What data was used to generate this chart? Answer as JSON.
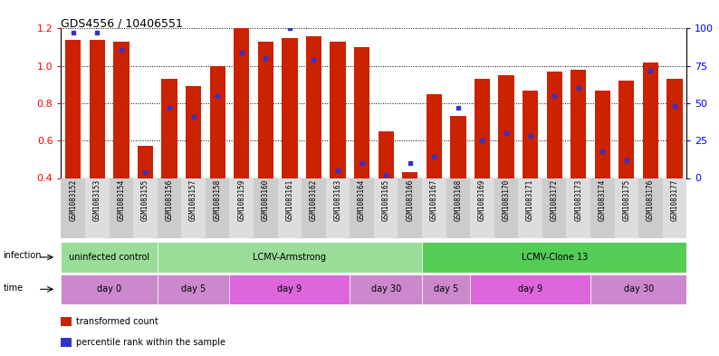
{
  "title": "GDS4556 / 10406551",
  "samples": [
    "GSM1083152",
    "GSM1083153",
    "GSM1083154",
    "GSM1083155",
    "GSM1083156",
    "GSM1083157",
    "GSM1083158",
    "GSM1083159",
    "GSM1083160",
    "GSM1083161",
    "GSM1083162",
    "GSM1083163",
    "GSM1083164",
    "GSM1083165",
    "GSM1083166",
    "GSM1083167",
    "GSM1083168",
    "GSM1083169",
    "GSM1083170",
    "GSM1083171",
    "GSM1083172",
    "GSM1083173",
    "GSM1083174",
    "GSM1083175",
    "GSM1083176",
    "GSM1083177"
  ],
  "bar_values": [
    1.14,
    1.14,
    1.13,
    0.57,
    0.93,
    0.89,
    1.0,
    1.2,
    1.13,
    1.15,
    1.16,
    1.13,
    1.1,
    0.65,
    0.43,
    0.85,
    0.73,
    0.93,
    0.95,
    0.87,
    0.97,
    0.98,
    0.87,
    0.92,
    1.02,
    0.93
  ],
  "blue_pct": [
    97,
    97,
    86,
    4,
    47,
    41,
    55,
    84,
    80,
    100,
    79,
    5,
    10,
    2,
    10,
    14,
    47,
    25,
    30,
    28,
    55,
    60,
    18,
    12,
    72,
    48
  ],
  "ylim": [
    0.4,
    1.2
  ],
  "yticks": [
    0.4,
    0.6,
    0.8,
    1.0,
    1.2
  ],
  "right_yticks": [
    0,
    25,
    50,
    75,
    100
  ],
  "bar_color": "#cc2200",
  "blue_color": "#3333cc",
  "infection_groups": [
    {
      "label": "uninfected control",
      "start": 0,
      "end": 3,
      "color": "#99dd99"
    },
    {
      "label": "LCMV-Armstrong",
      "start": 4,
      "end": 14,
      "color": "#99dd99"
    },
    {
      "label": "LCMV-Clone 13",
      "start": 15,
      "end": 25,
      "color": "#55cc55"
    }
  ],
  "time_groups": [
    {
      "label": "day 0",
      "start": 0,
      "end": 3,
      "color": "#cc88cc"
    },
    {
      "label": "day 5",
      "start": 4,
      "end": 6,
      "color": "#cc88cc"
    },
    {
      "label": "day 9",
      "start": 7,
      "end": 11,
      "color": "#dd66dd"
    },
    {
      "label": "day 30",
      "start": 12,
      "end": 14,
      "color": "#cc88cc"
    },
    {
      "label": "day 5",
      "start": 15,
      "end": 16,
      "color": "#cc88cc"
    },
    {
      "label": "day 9",
      "start": 17,
      "end": 21,
      "color": "#dd66dd"
    },
    {
      "label": "day 30",
      "start": 22,
      "end": 25,
      "color": "#cc88cc"
    }
  ],
  "legend_items": [
    {
      "label": "transformed count",
      "color": "#cc2200"
    },
    {
      "label": "percentile rank within the sample",
      "color": "#3333cc"
    }
  ],
  "tick_bg_even": "#cccccc",
  "tick_bg_odd": "#dddddd"
}
